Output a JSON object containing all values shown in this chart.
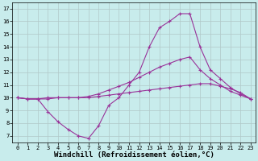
{
  "xlabel": "Windchill (Refroidissement éolien,°C)",
  "ylabel": "",
  "xlim": [
    -0.5,
    23.5
  ],
  "ylim": [
    6.5,
    17.5
  ],
  "yticks": [
    7,
    8,
    9,
    10,
    11,
    12,
    13,
    14,
    15,
    16,
    17
  ],
  "xticks": [
    0,
    1,
    2,
    3,
    4,
    5,
    6,
    7,
    8,
    9,
    10,
    11,
    12,
    13,
    14,
    15,
    16,
    17,
    18,
    19,
    20,
    21,
    22,
    23
  ],
  "bg_color": "#c8ecec",
  "grid_color": "#b0c8c8",
  "line_color": "#993399",
  "line1_x": [
    0,
    1,
    2,
    3,
    4,
    5,
    6,
    7,
    8,
    9,
    10,
    11,
    12,
    13,
    14,
    15,
    16,
    17,
    18,
    19,
    20,
    21,
    22,
    23
  ],
  "line1_y": [
    10.0,
    9.9,
    9.9,
    10.0,
    10.0,
    10.0,
    10.0,
    10.0,
    10.1,
    10.2,
    10.3,
    10.4,
    10.5,
    10.6,
    10.7,
    10.8,
    10.9,
    11.0,
    11.1,
    11.1,
    10.9,
    10.7,
    10.4,
    9.9
  ],
  "line2_x": [
    0,
    1,
    2,
    3,
    4,
    5,
    6,
    7,
    8,
    9,
    10,
    11,
    12,
    13,
    14,
    15,
    16,
    17,
    18,
    19,
    20,
    21,
    22,
    23
  ],
  "line2_y": [
    10.0,
    9.9,
    9.9,
    9.9,
    10.0,
    10.0,
    10.0,
    10.1,
    10.3,
    10.6,
    10.9,
    11.2,
    11.6,
    12.0,
    12.4,
    12.7,
    13.0,
    13.2,
    12.2,
    11.5,
    11.0,
    10.5,
    10.2,
    9.9
  ],
  "line3_x": [
    0,
    1,
    2,
    3,
    4,
    5,
    6,
    7,
    8,
    9,
    10,
    11,
    12,
    13,
    14,
    15,
    16,
    17,
    18,
    19,
    20,
    21,
    22,
    23
  ],
  "line3_y": [
    10.0,
    9.9,
    9.9,
    8.9,
    8.1,
    7.5,
    7.0,
    6.8,
    7.8,
    9.4,
    10.0,
    11.0,
    12.0,
    14.0,
    15.5,
    16.0,
    16.6,
    16.6,
    14.0,
    12.2,
    11.5,
    10.8,
    10.3,
    9.9
  ],
  "marker": "+",
  "marker_size": 3,
  "line_width": 0.8,
  "tick_fontsize": 5,
  "xlabel_fontsize": 6.5
}
